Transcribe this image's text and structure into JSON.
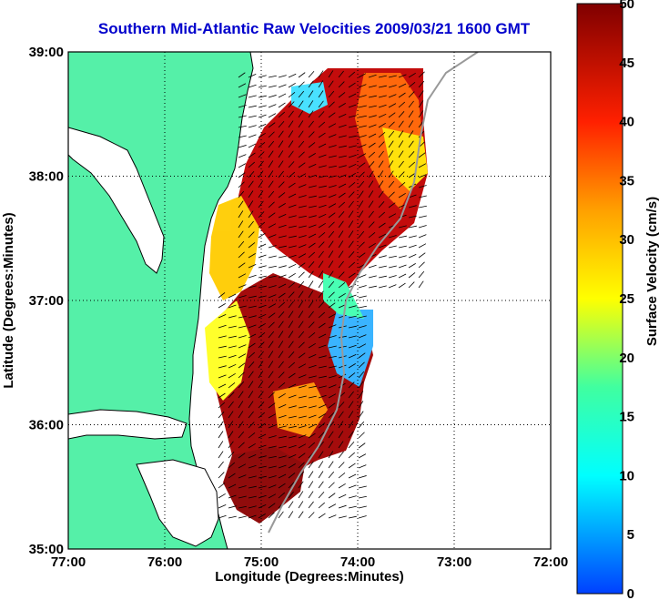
{
  "title": "Southern Mid-Atlantic Raw Velocities 2009/03/21 1600 GMT",
  "x_axis": {
    "label": "Longitude (Degrees:Minutes)",
    "ticks": [
      "77:00",
      "76:00",
      "75:00",
      "74:00",
      "73:00",
      "72:00"
    ]
  },
  "y_axis": {
    "label": "Latitude (Degrees:Minutes)",
    "ticks": [
      "39:00",
      "38:00",
      "37:00",
      "36:00",
      "35:00"
    ]
  },
  "colorbar": {
    "label": "Surface Velocity (cm/s)",
    "ticks": [
      "0",
      "5",
      "10",
      "15",
      "20",
      "25",
      "30",
      "35",
      "40",
      "45",
      "50"
    ],
    "min": 0,
    "max": 50
  },
  "colors": {
    "land": "#55f0a8",
    "title": "#0000cc",
    "grid": "#000000"
  },
  "chart_data": {
    "type": "heatmap",
    "title": "Southern Mid-Atlantic Raw Velocities 2009/03/21 1600 GMT",
    "xlabel": "Longitude (Degrees:Minutes)",
    "ylabel": "Latitude (Degrees:Minutes)",
    "xlim": [
      -77.0,
      -72.0
    ],
    "ylim": [
      35.0,
      39.0
    ],
    "colorbar_range_cm_s": [
      0,
      50
    ],
    "grid": true
  }
}
